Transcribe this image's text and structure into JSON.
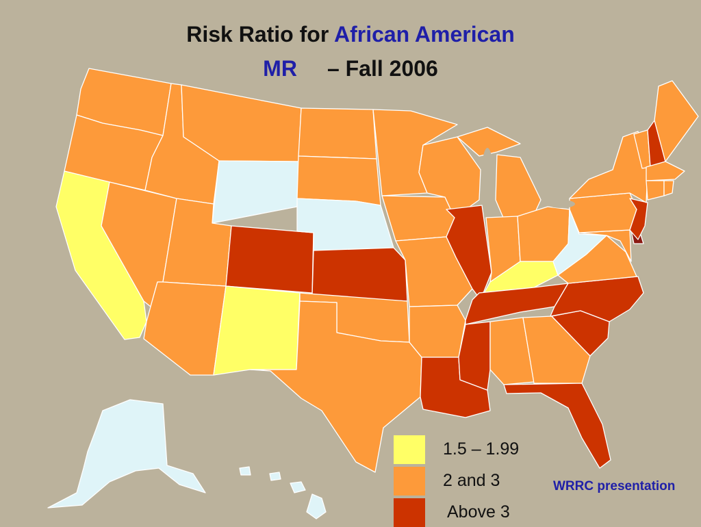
{
  "title": {
    "line1_prefix": "Risk Ratio for ",
    "line1_accent": "African American",
    "line2_accent": "MR",
    "line2_suffix": "– Fall 2006"
  },
  "colors": {
    "background": "#bbb29c",
    "category_light_blue": "#dff4f8",
    "category_yellow": "#ffff66",
    "category_orange": "#fd9a3a",
    "category_red": "#cc3300",
    "category_dark_red": "#8b1a12",
    "accent_text": "#1f1fa8"
  },
  "legend": [
    {
      "label": "1.5 – 1.99",
      "color": "#ffff66"
    },
    {
      "label": "2 and 3",
      "color": "#fd9a3a"
    },
    {
      "label": "Above 3",
      "color": "#cc3300"
    }
  ],
  "states": {
    "light_blue": [
      "Wyoming",
      "Nebraska",
      "West Virginia",
      "Alaska",
      "Hawaii"
    ],
    "yellow": [
      "California",
      "New Mexico",
      "Kentucky"
    ],
    "orange": [
      "Washington",
      "Oregon",
      "Idaho",
      "Montana",
      "Nevada",
      "Utah",
      "Arizona",
      "North Dakota",
      "South Dakota",
      "Minnesota",
      "Iowa",
      "Missouri",
      "Oklahoma",
      "Texas",
      "Arkansas",
      "Wisconsin",
      "Michigan",
      "Indiana",
      "Ohio",
      "Pennsylvania",
      "New York",
      "Vermont",
      "Maine",
      "Massachusetts",
      "Connecticut",
      "Rhode Island",
      "Virginia",
      "Maryland",
      "Alabama",
      "Georgia"
    ],
    "red": [
      "Colorado",
      "Kansas",
      "Illinois",
      "Tennessee",
      "North Carolina",
      "South Carolina",
      "Mississippi",
      "Louisiana",
      "Florida",
      "New Jersey",
      "New Hampshire"
    ],
    "dark_red": [
      "Delaware"
    ]
  },
  "credit": "WRRC presentation"
}
